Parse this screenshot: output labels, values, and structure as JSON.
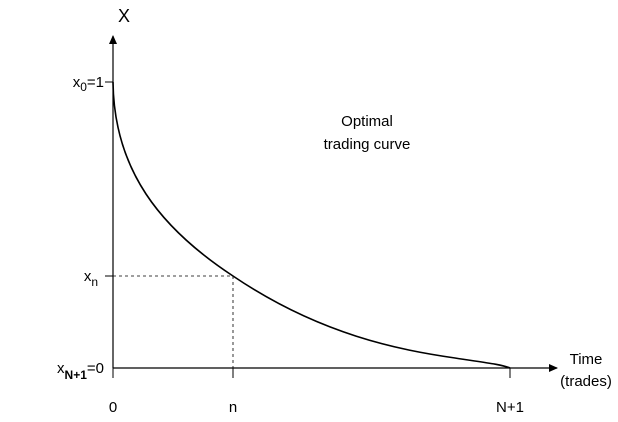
{
  "y_label": "X",
  "y_ticks": [
    {
      "base": "x",
      "sub": "0",
      "rest": "=1"
    },
    {
      "base": "x",
      "sub": "n"
    },
    {
      "base": "x",
      "sub": "N+1",
      "rest": "=0"
    }
  ],
  "x_ticks": [
    "0",
    "n",
    "N+1"
  ],
  "x_label": [
    "Time",
    "(trades)"
  ],
  "annotation": [
    "Optimal",
    "trading curve"
  ]
}
